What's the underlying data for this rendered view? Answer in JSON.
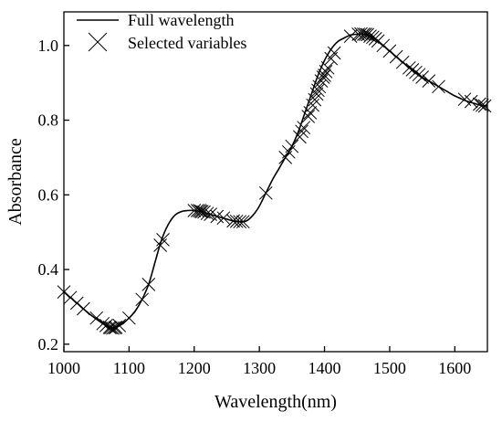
{
  "chart_data": {
    "type": "line",
    "xlabel": "Wavelength(nm)",
    "ylabel": "Absorbance",
    "xlim": [
      1000,
      1650
    ],
    "ylim": [
      0.18,
      1.09
    ],
    "xticks": [
      1000,
      1100,
      1200,
      1300,
      1400,
      1500,
      1600
    ],
    "yticks": [
      0.2,
      0.4,
      0.6,
      0.8,
      1.0
    ],
    "ytick_labels": [
      "0.2",
      "0.4",
      "0.6",
      "0.8",
      "1.0"
    ],
    "legend_position": "top-left",
    "series": [
      {
        "name": "Full wavelength",
        "style": "line",
        "x": [
          1000,
          1020,
          1040,
          1060,
          1070,
          1080,
          1090,
          1100,
          1110,
          1120,
          1130,
          1140,
          1150,
          1160,
          1170,
          1180,
          1190,
          1200,
          1210,
          1220,
          1230,
          1240,
          1250,
          1260,
          1270,
          1280,
          1290,
          1300,
          1310,
          1320,
          1330,
          1340,
          1350,
          1360,
          1370,
          1380,
          1390,
          1400,
          1410,
          1420,
          1430,
          1440,
          1450,
          1460,
          1470,
          1480,
          1490,
          1500,
          1510,
          1520,
          1530,
          1540,
          1550,
          1560,
          1570,
          1580,
          1590,
          1600,
          1610,
          1620,
          1630,
          1640,
          1650
        ],
        "y": [
          0.34,
          0.31,
          0.28,
          0.255,
          0.245,
          0.245,
          0.255,
          0.27,
          0.29,
          0.32,
          0.36,
          0.42,
          0.48,
          0.52,
          0.545,
          0.555,
          0.558,
          0.558,
          0.555,
          0.55,
          0.545,
          0.54,
          0.535,
          0.53,
          0.528,
          0.53,
          0.545,
          0.57,
          0.605,
          0.64,
          0.67,
          0.7,
          0.73,
          0.77,
          0.82,
          0.87,
          0.92,
          0.96,
          0.99,
          1.01,
          1.02,
          1.028,
          1.03,
          1.03,
          1.025,
          1.015,
          1.0,
          0.985,
          0.97,
          0.955,
          0.94,
          0.928,
          0.915,
          0.905,
          0.895,
          0.885,
          0.875,
          0.865,
          0.857,
          0.85,
          0.845,
          0.84,
          0.838
        ]
      },
      {
        "name": "Selected variables",
        "style": "marker",
        "marker": "x",
        "x": [
          1000,
          1010,
          1020,
          1030,
          1050,
          1060,
          1065,
          1070,
          1072,
          1075,
          1078,
          1080,
          1085,
          1100,
          1120,
          1130,
          1148,
          1152,
          1200,
          1205,
          1208,
          1210,
          1212,
          1215,
          1220,
          1225,
          1235,
          1245,
          1260,
          1265,
          1270,
          1275,
          1310,
          1340,
          1345,
          1350,
          1362,
          1365,
          1368,
          1375,
          1378,
          1382,
          1385,
          1388,
          1390,
          1392,
          1395,
          1398,
          1400,
          1402,
          1405,
          1410,
          1415,
          1440,
          1452,
          1456,
          1460,
          1463,
          1466,
          1470,
          1474,
          1478,
          1482,
          1490,
          1500,
          1510,
          1520,
          1530,
          1535,
          1540,
          1545,
          1550,
          1560,
          1575,
          1615,
          1625,
          1638,
          1642,
          1646
        ],
        "y": [
          0.34,
          0.325,
          0.31,
          0.295,
          0.27,
          0.255,
          0.25,
          0.245,
          0.244,
          0.243,
          0.244,
          0.245,
          0.25,
          0.27,
          0.32,
          0.36,
          0.465,
          0.48,
          0.558,
          0.558,
          0.558,
          0.556,
          0.555,
          0.554,
          0.55,
          0.548,
          0.542,
          0.538,
          0.53,
          0.529,
          0.528,
          0.528,
          0.605,
          0.7,
          0.715,
          0.73,
          0.755,
          0.77,
          0.78,
          0.81,
          0.82,
          0.84,
          0.855,
          0.87,
          0.88,
          0.89,
          0.905,
          0.915,
          0.92,
          0.93,
          0.94,
          0.965,
          0.98,
          1.025,
          1.03,
          1.031,
          1.03,
          1.03,
          1.029,
          1.025,
          1.022,
          1.018,
          1.012,
          1.0,
          0.985,
          0.97,
          0.955,
          0.94,
          0.935,
          0.928,
          0.922,
          0.915,
          0.905,
          0.89,
          0.856,
          0.85,
          0.843,
          0.84,
          0.838
        ]
      }
    ]
  }
}
